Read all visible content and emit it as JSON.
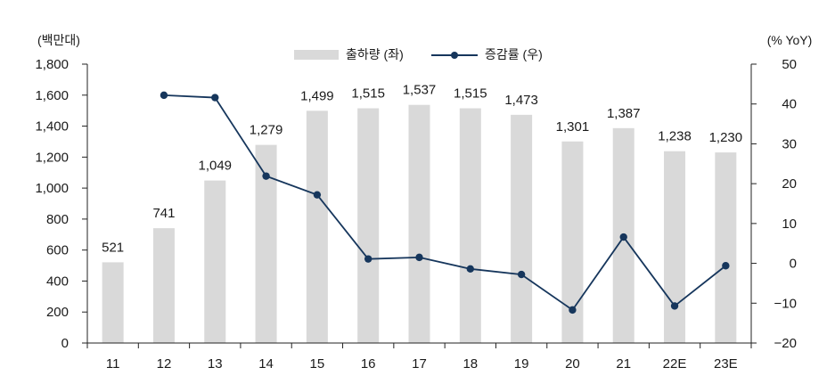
{
  "chart_data": {
    "type": "bar+line",
    "categories": [
      "11",
      "12",
      "13",
      "14",
      "15",
      "16",
      "17",
      "18",
      "19",
      "20",
      "21",
      "22E",
      "23E"
    ],
    "series": [
      {
        "name": "출하량 (좌)",
        "type": "bar",
        "axis": "left",
        "color": "#d9d9d9",
        "values": [
          521,
          741,
          1049,
          1279,
          1499,
          1515,
          1537,
          1515,
          1473,
          1301,
          1387,
          1238,
          1230
        ],
        "labels": [
          "521",
          "741",
          "1,049",
          "1,279",
          "1,499",
          "1,515",
          "1,537",
          "1,515",
          "1,473",
          "1,301",
          "1,387",
          "1,238",
          "1,230"
        ]
      },
      {
        "name": "증감률 (우)",
        "type": "line",
        "axis": "right",
        "color": "#16365c",
        "values": [
          null,
          42.2,
          41.6,
          21.9,
          17.2,
          1.1,
          1.5,
          -1.4,
          -2.8,
          -11.7,
          6.6,
          -10.7,
          -0.6
        ]
      }
    ],
    "left_axis": {
      "unit": "(백만대)",
      "min": 0,
      "max": 1800,
      "ticks": [
        0,
        200,
        400,
        600,
        800,
        1000,
        1200,
        1400,
        1600,
        1800
      ],
      "tick_labels": [
        "0",
        "200",
        "400",
        "600",
        "800",
        "1,000",
        "1,200",
        "1,400",
        "1,600",
        "1,800"
      ]
    },
    "right_axis": {
      "unit": "(% YoY)",
      "min": -20,
      "max": 50,
      "ticks": [
        -20,
        -10,
        0,
        10,
        20,
        30,
        40,
        50
      ],
      "tick_labels": [
        "−20",
        "−10",
        "0",
        "10",
        "20",
        "30",
        "40",
        "50"
      ]
    },
    "legend": {
      "position": "top-center",
      "entries": [
        "출하량 (좌)",
        "증감률 (우)"
      ]
    },
    "grid": false,
    "title": "",
    "xlabel": "",
    "ylabel": "(백만대)"
  }
}
